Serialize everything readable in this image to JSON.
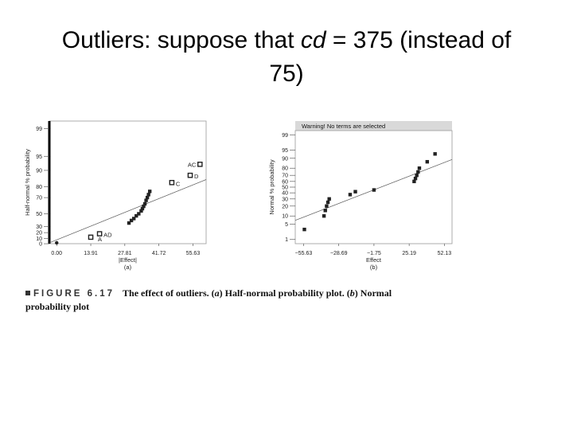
{
  "slide": {
    "title_prefix": "Outliers: suppose that ",
    "title_var": "cd",
    "title_suffix": " = 375 (instead of",
    "title_line2": "75)"
  },
  "figure": {
    "number": "FIGURE 6.17",
    "caption_a": "The effect of outliers. (",
    "caption_a_letter": "a",
    "caption_b": ") Half-normal probability plot. (",
    "caption_b_letter": "b",
    "caption_c": ") Normal probability plot"
  },
  "chart_data": [
    {
      "type": "scatter",
      "panel_label": "(a)",
      "xlabel": "|Effect|",
      "ylabel": "Half-normal % probability",
      "x_ticks": [
        "0.00",
        "13.91",
        "27.81",
        "41.72",
        "55.63"
      ],
      "x_tick_values": [
        0.0,
        13.91,
        27.81,
        41.72,
        55.63
      ],
      "y_ticks": [
        "0",
        "10",
        "20",
        "30",
        "50",
        "70",
        "80",
        "90",
        "95",
        "99"
      ],
      "xlim": [
        -3,
        61
      ],
      "y_scale": "half-normal probability",
      "fitted_line": {
        "x": [
          -3,
          61
        ],
        "y": [
          2,
          85
        ]
      },
      "points": [
        {
          "x": 0.0,
          "y": 2
        },
        {
          "x": 29.5,
          "y": 36
        },
        {
          "x": 30.5,
          "y": 40
        },
        {
          "x": 31.5,
          "y": 43
        },
        {
          "x": 32.5,
          "y": 47
        },
        {
          "x": 33.5,
          "y": 50
        },
        {
          "x": 34.5,
          "y": 54
        },
        {
          "x": 35.0,
          "y": 57
        },
        {
          "x": 35.5,
          "y": 60
        },
        {
          "x": 36.0,
          "y": 63
        },
        {
          "x": 36.5,
          "y": 67
        },
        {
          "x": 37.0,
          "y": 70
        },
        {
          "x": 37.5,
          "y": 73
        },
        {
          "x": 38.0,
          "y": 76
        }
      ],
      "labeled_points": [
        {
          "label": "A",
          "x": 13.91,
          "y": 12
        },
        {
          "label": "AD",
          "x": 17.5,
          "y": 18
        },
        {
          "label": "C",
          "x": 47.0,
          "y": 83
        },
        {
          "label": "D",
          "x": 54.5,
          "y": 87.5
        },
        {
          "label": "AC",
          "x": 58.5,
          "y": 92.5
        }
      ]
    },
    {
      "type": "scatter",
      "panel_label": "(b)",
      "warning": "Warning! No terms are selected",
      "xlabel": "Effect",
      "ylabel": "Normal % probability",
      "x_ticks": [
        "−55.63",
        "−28.69",
        "−1.75",
        "25.19",
        "52.13"
      ],
      "x_tick_values": [
        -55.63,
        -28.69,
        -1.75,
        25.19,
        52.13
      ],
      "y_ticks": [
        "1",
        "5",
        "10",
        "20",
        "30",
        "40",
        "50",
        "60",
        "70",
        "80",
        "90",
        "95",
        "99"
      ],
      "xlim": [
        -62,
        58
      ],
      "y_scale": "normal probability",
      "fitted_line": {
        "x": [
          -62,
          58
        ],
        "y": [
          7,
          89
        ]
      },
      "points": [
        {
          "x": -55.0,
          "y": 3
        },
        {
          "x": -40.0,
          "y": 10
        },
        {
          "x": -39.0,
          "y": 15
        },
        {
          "x": -38.0,
          "y": 20
        },
        {
          "x": -37.0,
          "y": 25
        },
        {
          "x": -36.0,
          "y": 30
        },
        {
          "x": -20.0,
          "y": 37
        },
        {
          "x": -16.0,
          "y": 42
        },
        {
          "x": -1.75,
          "y": 45
        },
        {
          "x": 29.0,
          "y": 60
        },
        {
          "x": 30.0,
          "y": 65
        },
        {
          "x": 31.0,
          "y": 70
        },
        {
          "x": 32.0,
          "y": 75
        },
        {
          "x": 33.0,
          "y": 80
        },
        {
          "x": 39.0,
          "y": 87
        },
        {
          "x": 45.0,
          "y": 93
        }
      ]
    }
  ]
}
